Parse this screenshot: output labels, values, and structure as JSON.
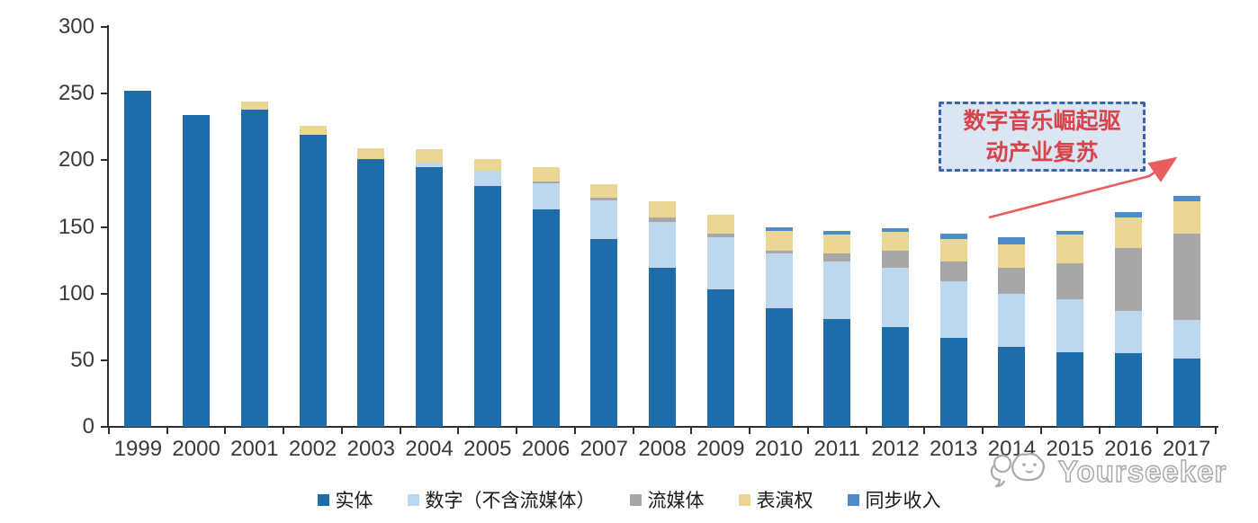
{
  "chart_data": {
    "type": "bar",
    "stacked": true,
    "title": "",
    "xlabel": "",
    "ylabel": "",
    "ylim": [
      0,
      300
    ],
    "yticks": [
      0,
      50,
      100,
      150,
      200,
      250,
      300
    ],
    "grid": false,
    "legend_position": "bottom",
    "categories": [
      "1999",
      "2000",
      "2001",
      "2002",
      "2003",
      "2004",
      "2005",
      "2006",
      "2007",
      "2008",
      "2009",
      "2010",
      "2011",
      "2012",
      "2013",
      "2014",
      "2015",
      "2016",
      "2017"
    ],
    "series": [
      {
        "name": "实体",
        "color": "#1f6cab",
        "values": [
          252,
          234,
          238,
          219,
          201,
          195,
          181,
          163,
          141,
          119,
          103,
          89,
          81,
          75,
          67,
          60,
          56,
          55,
          51
        ]
      },
      {
        "name": "数字（不含流媒体）",
        "color": "#bdd7ee",
        "values": [
          0,
          0,
          0,
          0,
          0,
          3,
          11,
          20,
          29,
          35,
          39,
          41,
          43,
          44,
          42,
          40,
          40,
          32,
          29
        ]
      },
      {
        "name": "流媒体",
        "color": "#a7a7a7",
        "values": [
          0,
          0,
          0,
          0,
          0,
          0,
          0,
          1,
          2,
          3,
          3,
          2,
          6,
          13,
          15,
          19,
          27,
          47,
          65
        ]
      },
      {
        "name": "表演权",
        "color": "#e9d793",
        "values": [
          0,
          0,
          6,
          7,
          8,
          10,
          9,
          11,
          10,
          12,
          14,
          15,
          14,
          14,
          17,
          18,
          21,
          23,
          24
        ]
      },
      {
        "name": "同步收入",
        "color": "#4e8cc9",
        "values": [
          0,
          0,
          0,
          0,
          0,
          0,
          0,
          0,
          0,
          0,
          0,
          3,
          3,
          3,
          4,
          5,
          3,
          4,
          4
        ]
      }
    ]
  },
  "annotation": {
    "line1": "数字音乐崛起驱",
    "line2": "动产业复苏",
    "text_color": "#d6434a",
    "border_color": "#3f62ad",
    "fill_color": "#dbe6f3",
    "arrow_color": "#e85d5d"
  },
  "watermark": {
    "text": "Yourseeker"
  }
}
